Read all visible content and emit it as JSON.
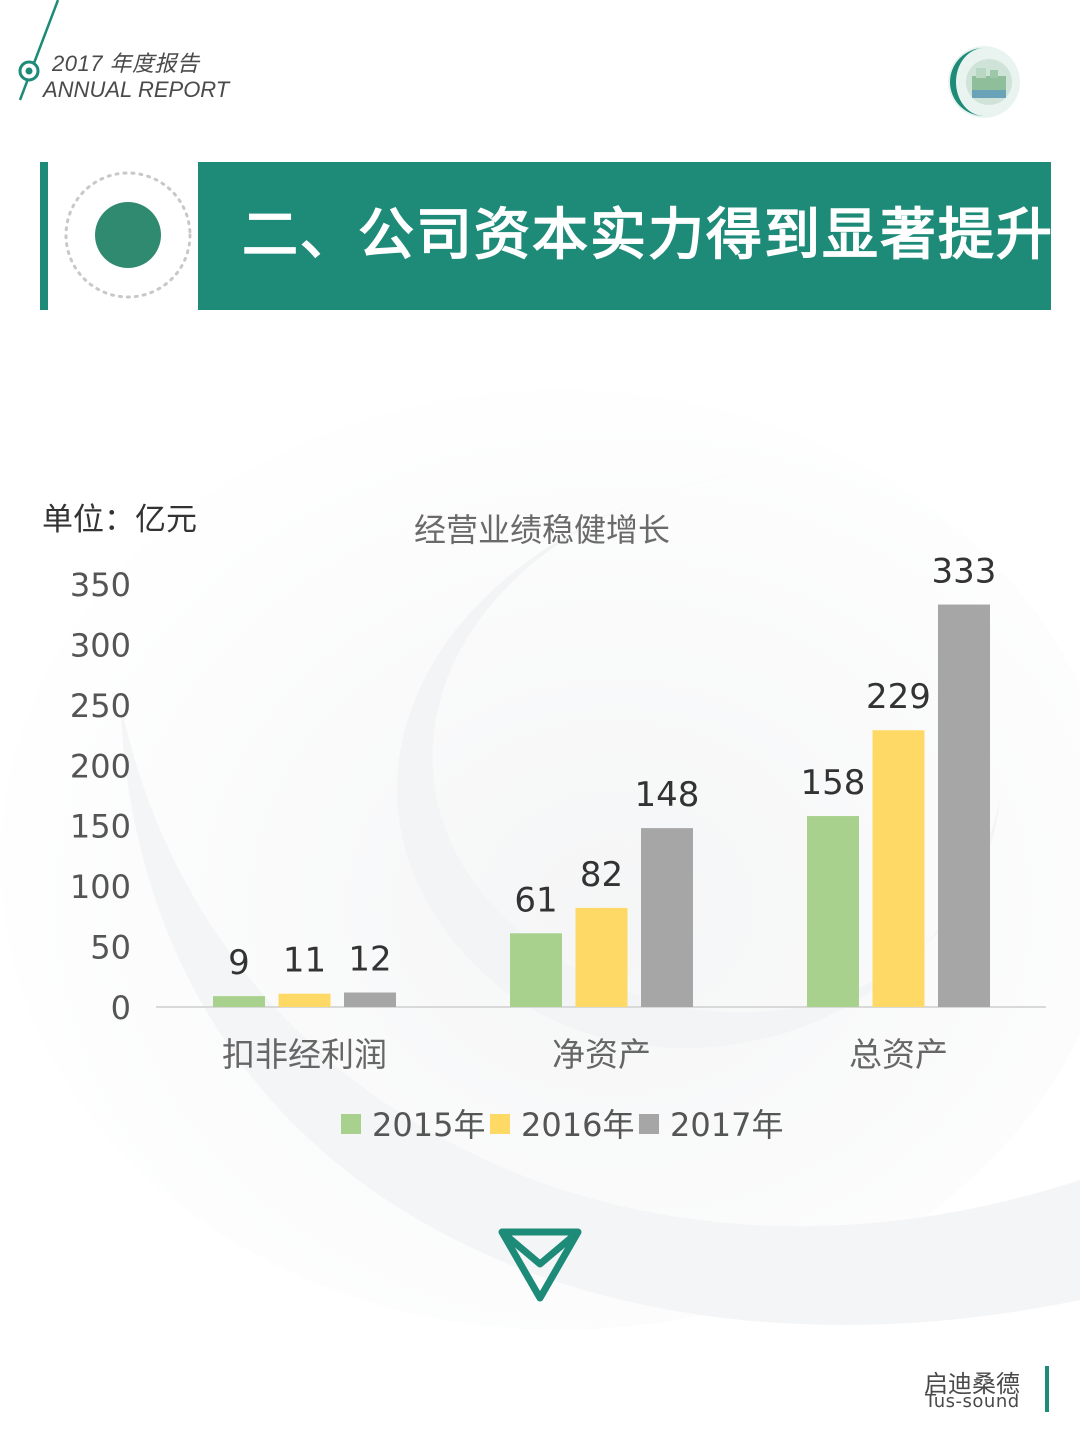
{
  "header": {
    "report_year": "2017 年度报告",
    "report_en": "ANNUAL REPORT"
  },
  "banner": {
    "title": "二、公司资本实力得到显著提升"
  },
  "footer": {
    "brand_cn": "启迪桑德",
    "brand_en": "Tus-sound"
  },
  "colors": {
    "accent": "#1e8a78",
    "series_2015": "#a9d18e",
    "series_2016": "#ffd966",
    "series_2017": "#a6a6a6"
  },
  "chart_data": {
    "type": "bar",
    "title": "经营业绩稳健增长",
    "unit_label": "单位：亿元",
    "categories": [
      "扣非经利润",
      "净资产",
      "总资产"
    ],
    "series": [
      {
        "name": "2015年",
        "values": [
          9,
          61,
          158
        ]
      },
      {
        "name": "2016年",
        "values": [
          11,
          82,
          229
        ]
      },
      {
        "name": "2017年",
        "values": [
          12,
          148,
          333
        ]
      }
    ],
    "ylim": [
      0,
      350
    ],
    "yticks": [
      0,
      50,
      100,
      150,
      200,
      250,
      300,
      350
    ],
    "grid": false,
    "legend": "bottom"
  }
}
